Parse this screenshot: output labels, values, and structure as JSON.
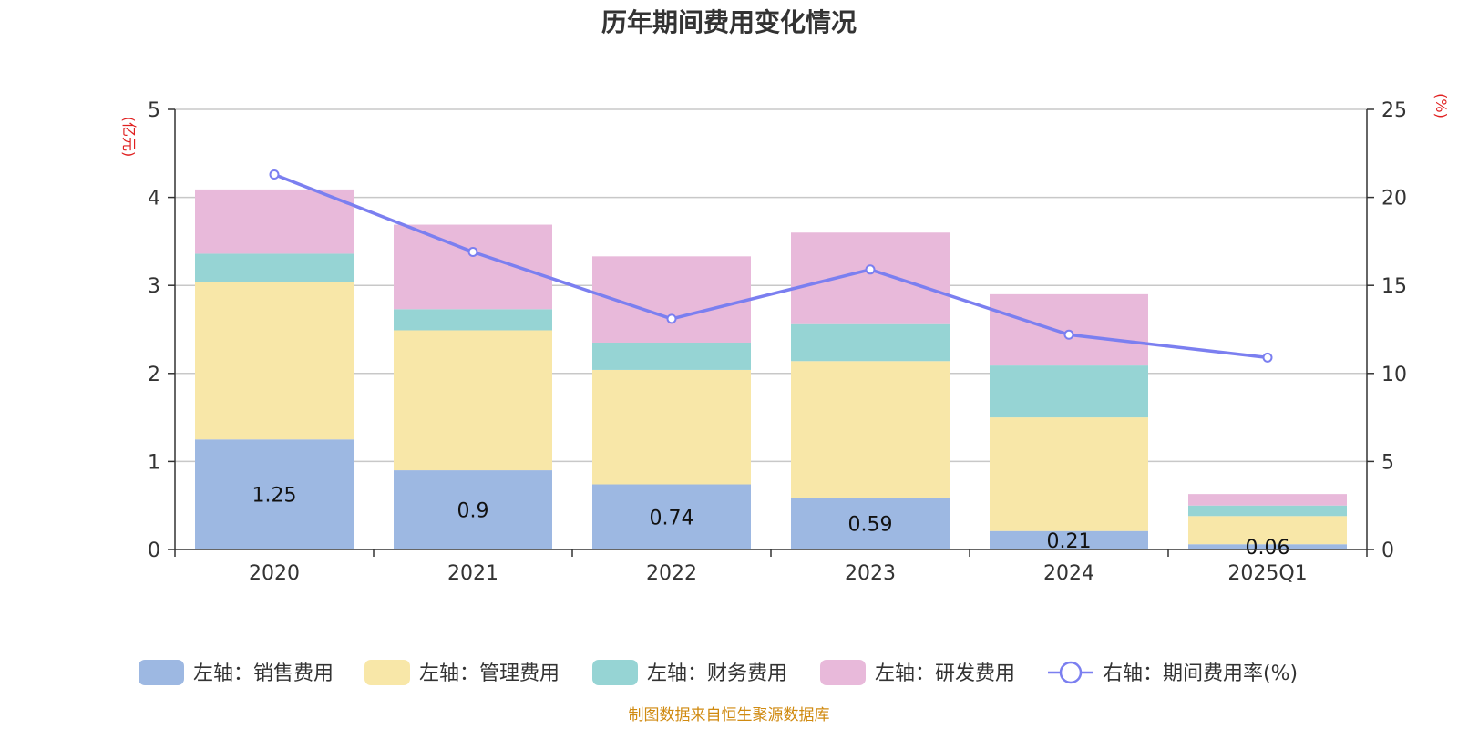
{
  "chart_data": {
    "type": "bar",
    "stacked": true,
    "title": "历年期间费用变化情况",
    "categories": [
      "2020",
      "2021",
      "2022",
      "2023",
      "2024",
      "2025Q1"
    ],
    "left_axis": {
      "unit": "(亿元)",
      "ylim": [
        0,
        5
      ],
      "ticks": [
        "0",
        "1",
        "2",
        "3",
        "4",
        "5"
      ]
    },
    "right_axis": {
      "unit": "(%)",
      "ylim": [
        0,
        25
      ],
      "ticks": [
        "0",
        "5",
        "10",
        "15",
        "20",
        "25"
      ]
    },
    "series": [
      {
        "name": "左轴：销售费用",
        "type": "bar",
        "axis": "left",
        "color": "#9db8e2",
        "values": [
          1.25,
          0.9,
          0.74,
          0.59,
          0.21,
          0.06
        ],
        "labels": [
          "1.25",
          "0.9",
          "0.74",
          "0.59",
          "0.21",
          "0.06"
        ]
      },
      {
        "name": "左轴：管理费用",
        "type": "bar",
        "axis": "left",
        "color": "#f8e7a8",
        "values": [
          1.79,
          1.59,
          1.3,
          1.55,
          1.29,
          0.32
        ]
      },
      {
        "name": "左轴：财务费用",
        "type": "bar",
        "axis": "left",
        "color": "#96d4d4",
        "values": [
          0.32,
          0.24,
          0.31,
          0.42,
          0.59,
          0.12
        ]
      },
      {
        "name": "左轴：研发费用",
        "type": "bar",
        "axis": "left",
        "color": "#e8b9da",
        "values": [
          0.73,
          0.96,
          0.98,
          1.04,
          0.81,
          0.13
        ]
      },
      {
        "name": "右轴：期间费用率(%)",
        "type": "line",
        "axis": "right",
        "color": "#7b7ff0",
        "values": [
          21.3,
          16.9,
          13.1,
          15.9,
          12.2,
          10.9
        ]
      }
    ],
    "legend_position": "bottom",
    "grid": true
  },
  "footer": {
    "source": "制图数据来自恒生聚源数据库"
  }
}
